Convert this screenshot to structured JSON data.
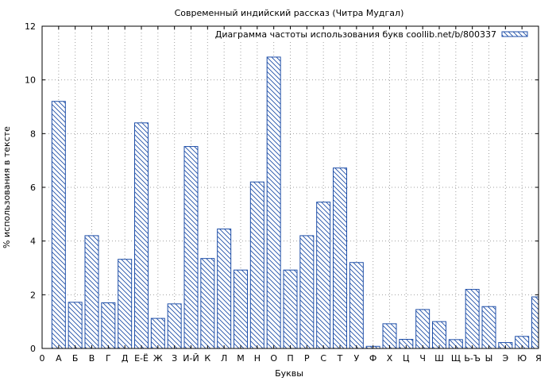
{
  "chart_data": {
    "type": "bar",
    "title": "Современный индийский рассказ (Читра Мудгал)",
    "xlabel": "Буквы",
    "ylabel": "% использования в тексте",
    "x_tick_labels": [
      "0",
      "А",
      "Б",
      "В",
      "Г",
      "Д",
      "Е-Ё",
      "Ж",
      "З",
      "И-Й",
      "К",
      "Л",
      "М",
      "Н",
      "О",
      "П",
      "Р",
      "С",
      "Т",
      "У",
      "Ф",
      "Х",
      "Ц",
      "Ч",
      "Ш",
      "Щ",
      "Ь-Ъ",
      "Ы",
      "Э",
      "Ю",
      "Я"
    ],
    "categories": [
      "А",
      "Б",
      "В",
      "Г",
      "Д",
      "Е-Ё",
      "Ж",
      "З",
      "И-Й",
      "К",
      "Л",
      "М",
      "Н",
      "О",
      "П",
      "Р",
      "С",
      "Т",
      "У",
      "Ф",
      "Х",
      "Ц",
      "Ч",
      "Ш",
      "Щ",
      "Ь-Ъ",
      "Ы",
      "Э",
      "Ю",
      "Я"
    ],
    "series": [
      {
        "name": "Диаграмма частоты использования букв coollib.net/b/800337",
        "values": [
          9.2,
          1.72,
          4.2,
          1.7,
          3.32,
          8.4,
          1.12,
          1.66,
          7.52,
          3.35,
          4.45,
          2.92,
          6.2,
          10.85,
          2.92,
          4.2,
          5.45,
          6.72,
          3.2,
          0.08,
          0.92,
          0.34,
          1.45,
          1.0,
          0.33,
          2.2,
          1.56,
          0.22,
          0.45,
          1.92
        ]
      }
    ],
    "ylim": [
      0,
      12
    ],
    "yticks": [
      0,
      2,
      4,
      6,
      8,
      10,
      12
    ],
    "grid": true,
    "legend_position": "top-right",
    "colors": {
      "bar_stroke": "#1f4fa8",
      "bar_hatch": "#1f4fa8",
      "grid": "#a0a0a0"
    }
  }
}
